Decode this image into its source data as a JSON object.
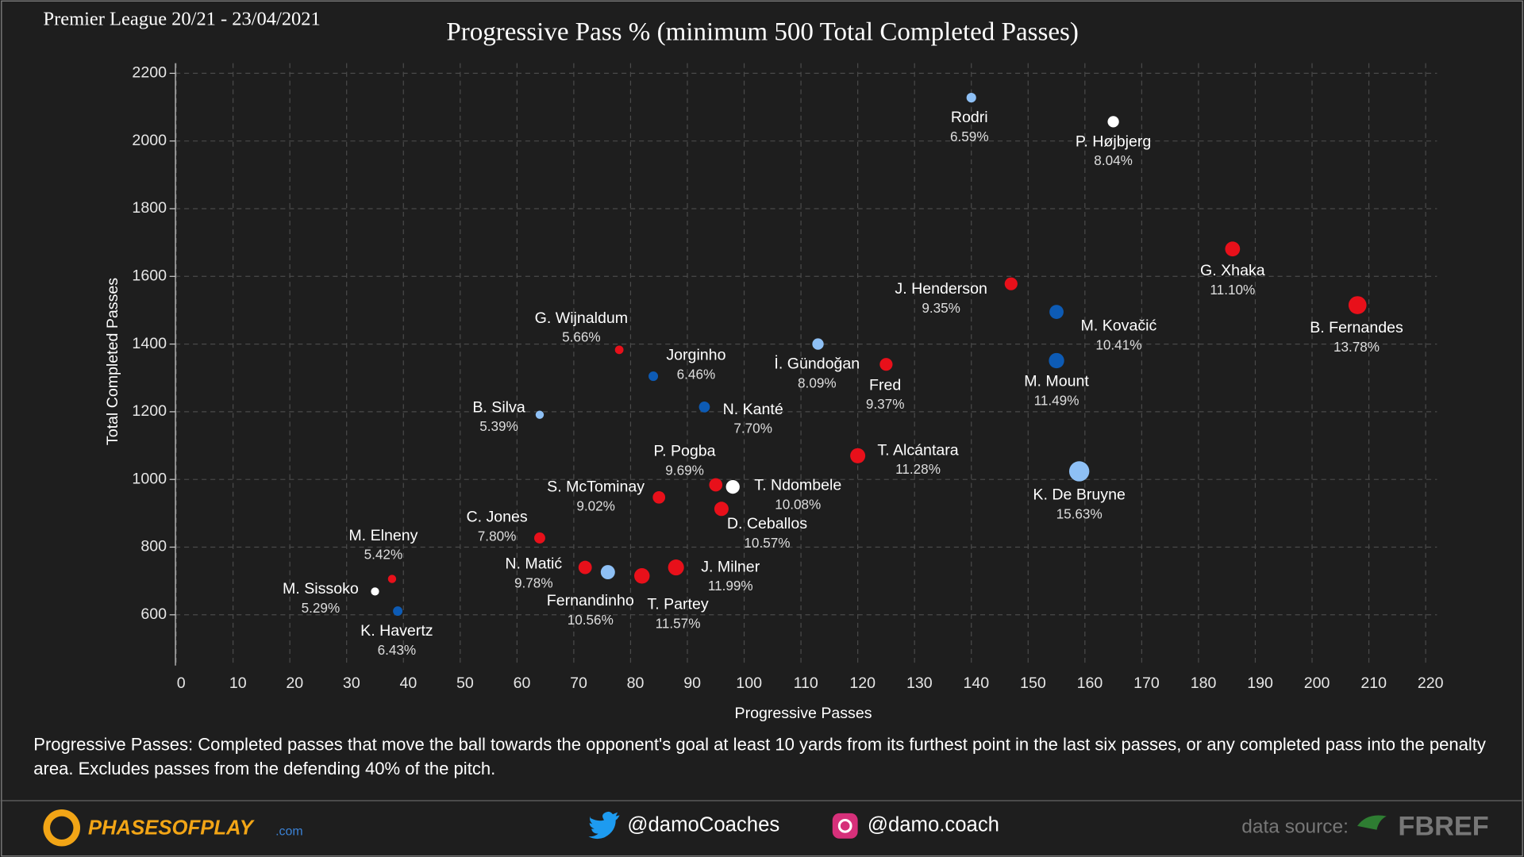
{
  "header": "Premier League 20/21 - 23/04/2021",
  "chart_data": {
    "type": "scatter",
    "title": "Progressive Pass % (minimum 500 Total Completed Passes)",
    "x_label": "Progressive Passes",
    "y_label": "Total Completed Passes",
    "names": [
      "Rodri",
      "P. Højbjerg",
      "G. Xhaka",
      "B. Fernandes",
      "J. Henderson",
      "M. Kovačić",
      "M. Mount",
      "İ. Gündoğan",
      "Fred",
      "G. Wijnaldum",
      "Jorginho",
      "B. Silva",
      "N. Kanté",
      "T. Alcántara",
      "K. De Bruyne",
      "P. Pogba",
      "T. Ndombele",
      "S. McTominay",
      "D. Ceballos",
      "C. Jones",
      "N. Matić",
      "Fernandinho",
      "T. Partey",
      "J. Milner",
      "M. Elneny",
      "M. Sissoko",
      "K. Havertz"
    ],
    "x": [
      140,
      165,
      186,
      208,
      147,
      155,
      155,
      113,
      125,
      78,
      84,
      64,
      93,
      120,
      159,
      95,
      98,
      85,
      96,
      64,
      72,
      76,
      82,
      88,
      38,
      35,
      39
    ],
    "y": [
      2128,
      2057,
      1681,
      1515,
      1578,
      1495,
      1351,
      1400,
      1340,
      1383,
      1305,
      1191,
      1214,
      1070,
      1024,
      984,
      978,
      947,
      913,
      827,
      740,
      726,
      715,
      740,
      706,
      669,
      611
    ],
    "values": [
      6.59,
      8.04,
      11.1,
      13.78,
      9.35,
      10.41,
      11.49,
      8.09,
      9.37,
      5.66,
      6.46,
      5.39,
      7.7,
      11.28,
      15.63,
      9.69,
      10.08,
      9.02,
      10.57,
      7.8,
      9.78,
      10.56,
      11.57,
      11.99,
      5.42,
      5.29,
      6.43
    ],
    "value_labels": [
      "6.59%",
      "8.04%",
      "11.10%",
      "13.78%",
      "9.35%",
      "10.41%",
      "11.49%",
      "8.09%",
      "9.37%",
      "5.66%",
      "6.46%",
      "5.39%",
      "7.70%",
      "11.28%",
      "15.63%",
      "9.69%",
      "10.08%",
      "9.02%",
      "10.57%",
      "7.80%",
      "9.78%",
      "10.56%",
      "11.57%",
      "11.99%",
      "5.42%",
      "5.29%",
      "6.43%"
    ],
    "colors": [
      "#8ec0f5",
      "#ffffff",
      "#e8101a",
      "#e8101a",
      "#e8101a",
      "#0d5bb5",
      "#0d5bb5",
      "#8ec0f5",
      "#e8101a",
      "#e8101a",
      "#0d5bb5",
      "#8ec0f5",
      "#0d5bb5",
      "#e8101a",
      "#8ec0f5",
      "#e8101a",
      "#ffffff",
      "#e8101a",
      "#e8101a",
      "#e8101a",
      "#e8101a",
      "#8ec0f5",
      "#e8101a",
      "#e8101a",
      "#e8101a",
      "#ffffff",
      "#0d5bb5"
    ],
    "xlim": [
      -1,
      222
    ],
    "ylim": [
      450,
      2230
    ],
    "xticks": [
      0,
      10,
      20,
      30,
      40,
      50,
      60,
      70,
      80,
      90,
      100,
      110,
      120,
      130,
      140,
      150,
      160,
      170,
      180,
      190,
      200,
      210,
      220
    ],
    "yticks": [
      600,
      800,
      1000,
      1200,
      1400,
      1600,
      1800,
      2000,
      2200
    ],
    "grid": true
  },
  "footnote": "Progressive Passes: Completed passes that move the ball towards the opponent's goal at least 10 yards from its furthest point in the last six passes, or any completed pass into the penalty area. Excludes passes from the defending 40% of the pitch.",
  "footer": {
    "logo": "PHASESOFPLAY",
    "logo_suffix": ".com",
    "twitter": "@damoCoaches",
    "instagram": "@damo.coach",
    "source_label": "data source:",
    "source": "FBREF"
  }
}
